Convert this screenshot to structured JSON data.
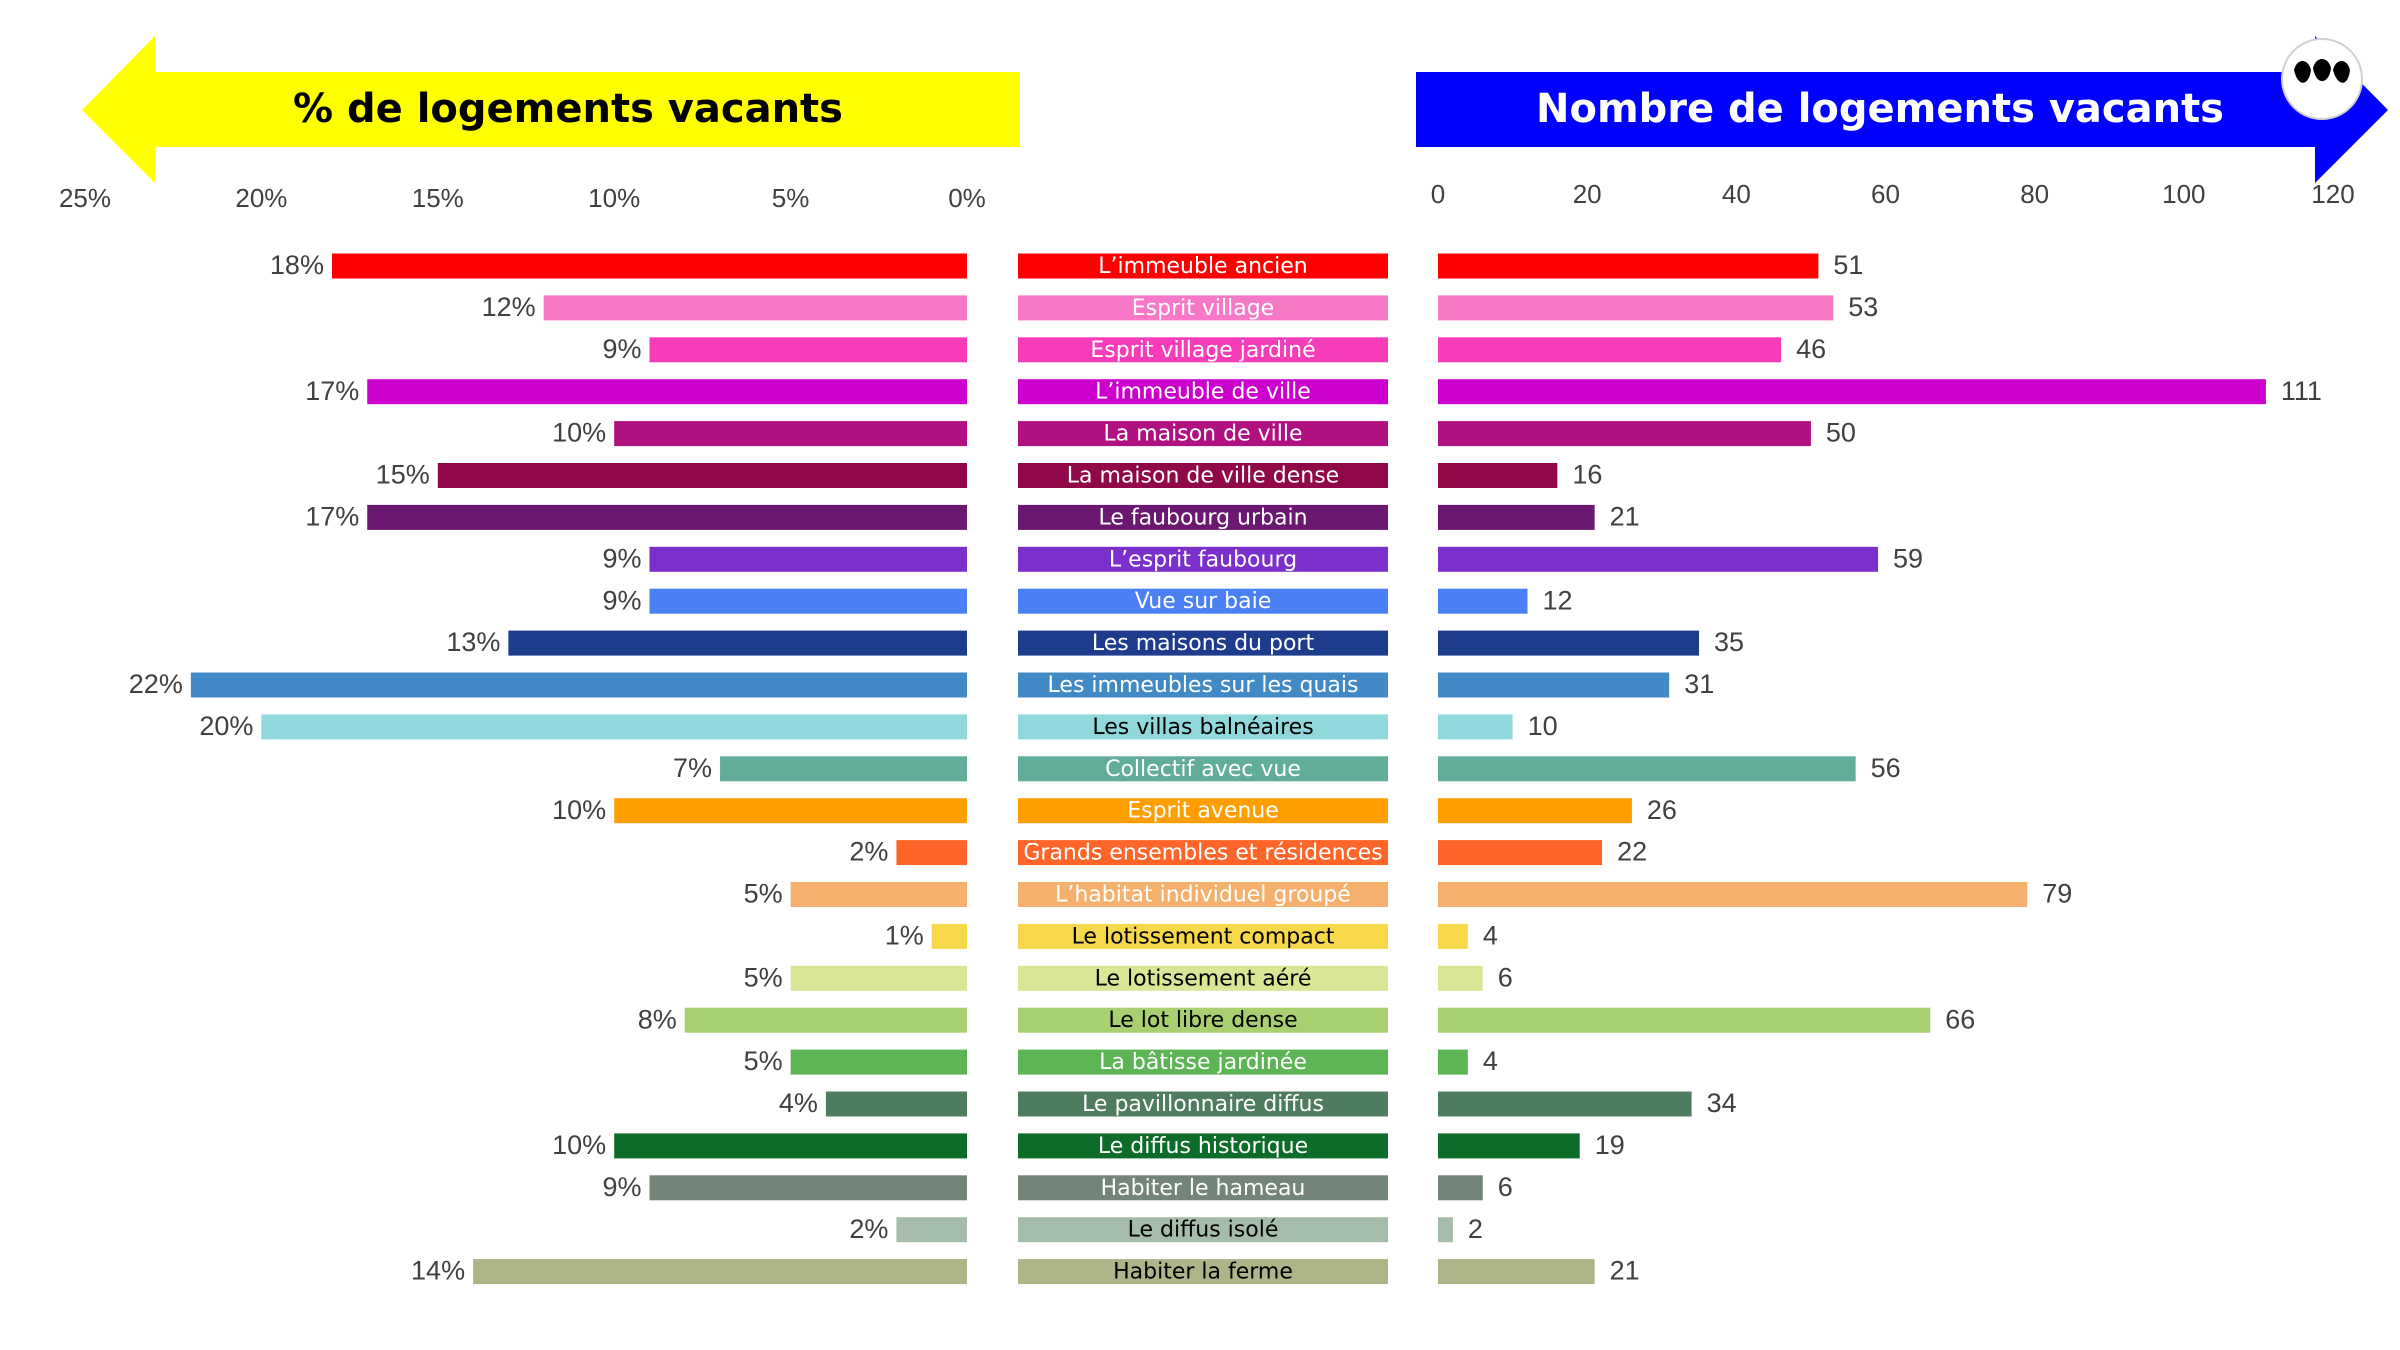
{
  "header": {
    "left_title": "% de logements vacants",
    "right_title": "Nombre de logements vacants",
    "left_arrow_color": "#FFFF00",
    "right_arrow_color": "#0000FF",
    "logo_icon": "leaf-logo-icon"
  },
  "chart_data": [
    {
      "type": "bar",
      "orientation": "horizontal",
      "direction": "right-to-left",
      "title": "% de logements vacants",
      "xlim": [
        0,
        25
      ],
      "unit": "%",
      "ticks": [
        "25%",
        "20%",
        "15%",
        "10%",
        "5%",
        "0%"
      ],
      "categories": [
        "L’immeuble ancien",
        "Esprit village",
        "Esprit village jardiné",
        "L’immeuble de ville",
        "La maison de ville",
        "La maison de ville dense",
        "Le faubourg urbain",
        "L’esprit faubourg",
        "Vue sur baie",
        "Les maisons du port",
        "Les immeubles sur les quais",
        "Les villas balnéaires",
        "Collectif avec vue",
        "Esprit avenue",
        "Grands ensembles et résidences",
        "L’habitat individuel groupé",
        "Le lotissement compact",
        "Le lotissement aéré",
        "Le lot libre dense",
        "La bâtisse jardinée",
        "Le pavillonnaire diffus",
        "Le diffus historique",
        "Habiter le hameau",
        "Le diffus isolé",
        "Habiter la ferme"
      ],
      "values": [
        18,
        12,
        9,
        17,
        10,
        15,
        17,
        9,
        9,
        13,
        22,
        20,
        7,
        10,
        2,
        5,
        1,
        5,
        8,
        5,
        4,
        10,
        9,
        2,
        14
      ],
      "labels": [
        "18%",
        "12%",
        "9%",
        "17%",
        "10%",
        "15%",
        "17%",
        "9%",
        "9%",
        "13%",
        "22%",
        "20%",
        "7%",
        "10%",
        "2%",
        "5%",
        "1%",
        "5%",
        "8%",
        "5%",
        "4%",
        "10%",
        "9%",
        "2%",
        "14%"
      ]
    },
    {
      "type": "bar",
      "orientation": "horizontal",
      "title": "Nombre de logements vacants",
      "xlim": [
        0,
        120
      ],
      "ticks": [
        "0",
        "20",
        "40",
        "60",
        "80",
        "100",
        "120"
      ],
      "categories": [
        "L’immeuble ancien",
        "Esprit village",
        "Esprit village jardiné",
        "L’immeuble de ville",
        "La maison de ville",
        "La maison de ville dense",
        "Le faubourg urbain",
        "L’esprit faubourg",
        "Vue sur baie",
        "Les maisons du port",
        "Les immeubles sur les quais",
        "Les villas balnéaires",
        "Collectif avec vue",
        "Esprit avenue",
        "Grands ensembles et résidences",
        "L’habitat individuel groupé",
        "Le lotissement compact",
        "Le lotissement aéré",
        "Le lot libre dense",
        "La bâtisse jardinée",
        "Le pavillonnaire diffus",
        "Le diffus historique",
        "Habiter le hameau",
        "Le diffus isolé",
        "Habiter la ferme"
      ],
      "values": [
        51,
        53,
        46,
        111,
        50,
        16,
        21,
        59,
        12,
        35,
        31,
        10,
        56,
        26,
        22,
        79,
        4,
        6,
        66,
        4,
        34,
        19,
        6,
        2,
        21
      ]
    }
  ],
  "colors": [
    "#FF0000",
    "#F878C8",
    "#F63CB8",
    "#CC00CC",
    "#B01080",
    "#900848",
    "#6A1870",
    "#7B30CC",
    "#4A80F4",
    "#1E3C8C",
    "#428AC6",
    "#90D8DC",
    "#62AC9A",
    "#FF9E00",
    "#FF6428",
    "#F4B06C",
    "#F6D84A",
    "#DAE696",
    "#A8D070",
    "#5CB454",
    "#4E7C5E",
    "#0C6C28",
    "#738478",
    "#A6BCAA",
    "#ACB488"
  ],
  "label_colors": [
    "#FFFFFF",
    "#FFFFFF",
    "#FFFFFF",
    "#FFFFFF",
    "#FFFFFF",
    "#FFFFFF",
    "#FFFFFF",
    "#FFFFFF",
    "#FFFFFF",
    "#FFFFFF",
    "#FFFFFF",
    "#000000",
    "#FFFFFF",
    "#FFFFFF",
    "#FFFFFF",
    "#FFFFFF",
    "#000000",
    "#000000",
    "#000000",
    "#FFFFFF",
    "#FFFFFF",
    "#FFFFFF",
    "#FFFFFF",
    "#000000",
    "#000000"
  ]
}
